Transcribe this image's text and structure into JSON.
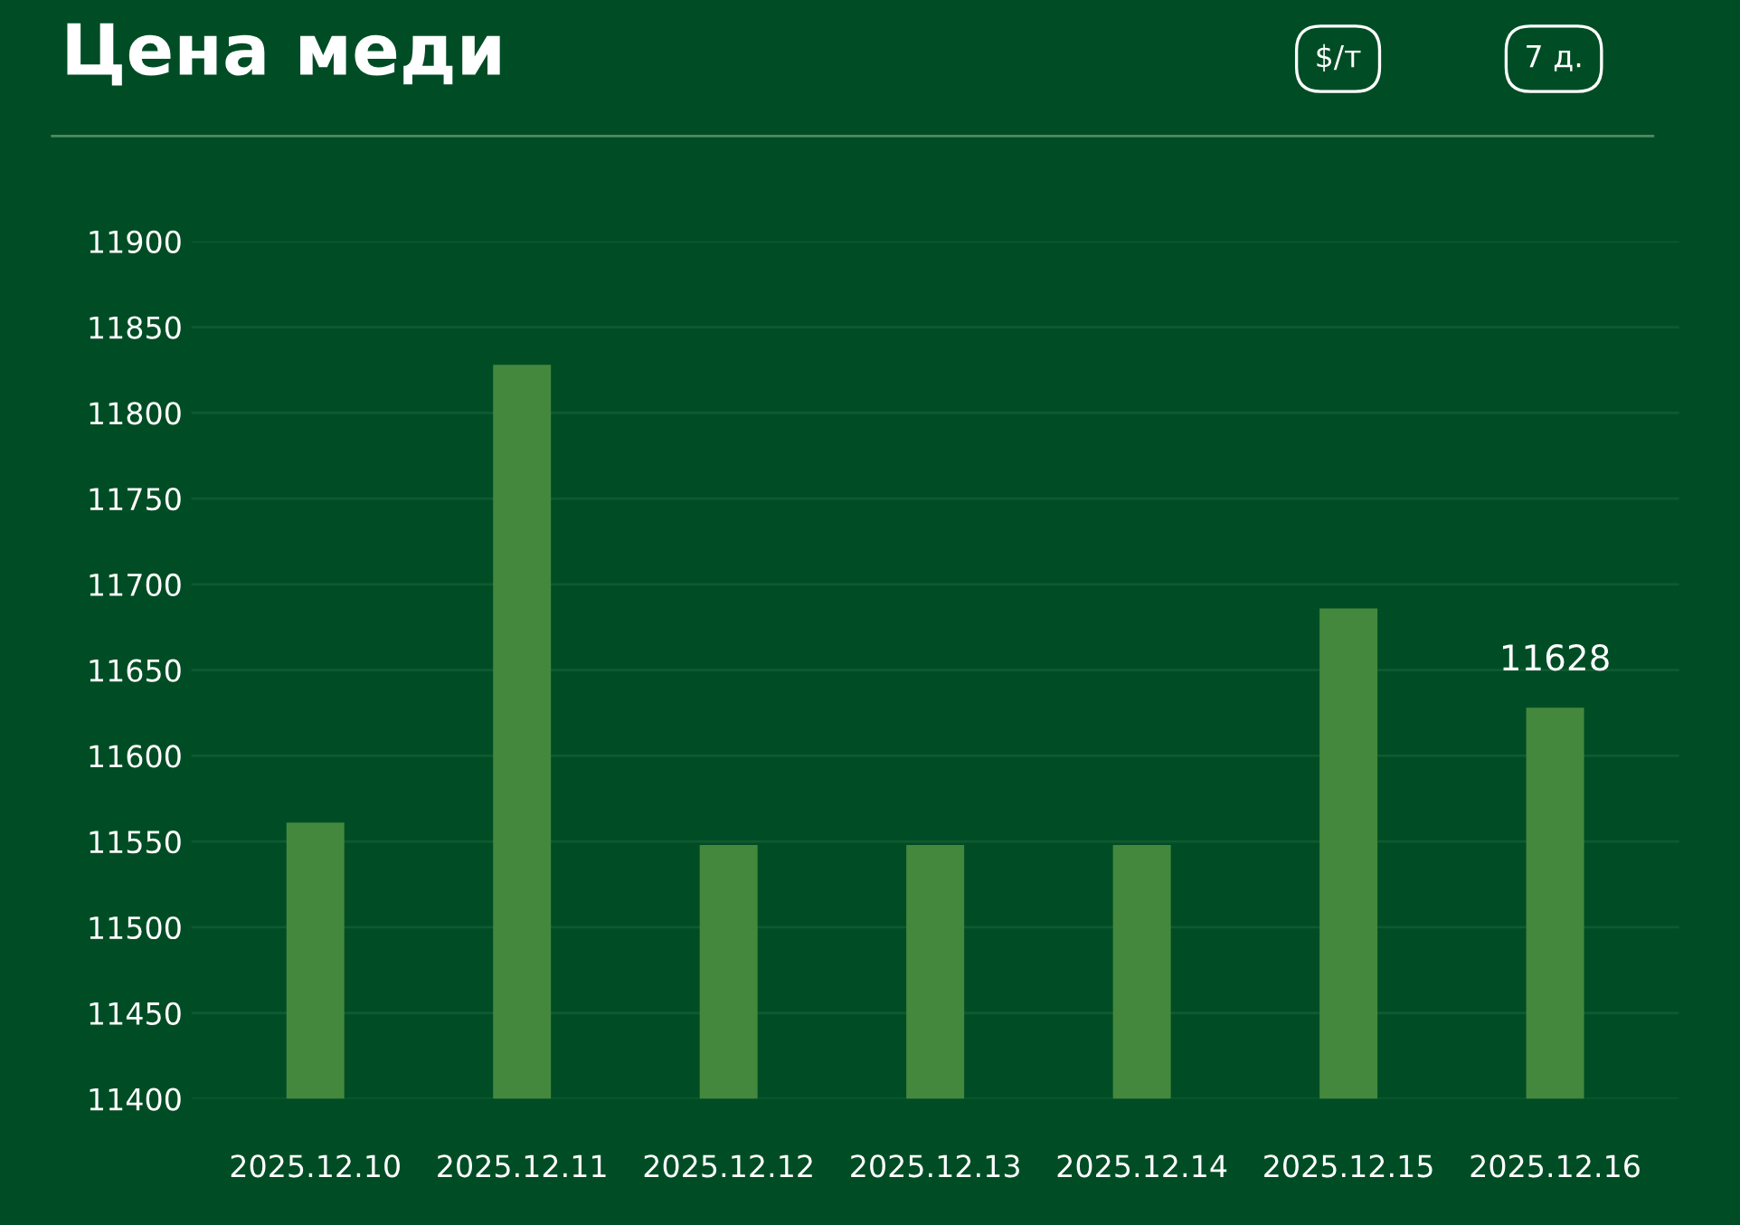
{
  "chart_data": {
    "type": "bar",
    "title": "Цена меди",
    "annotations": [
      "$/т",
      "7 д."
    ],
    "categories": [
      "2025.12.10",
      "2025.12.11",
      "2025.12.12",
      "2025.12.13",
      "2025.12.14",
      "2025.12.15",
      "2025.12.16"
    ],
    "values": [
      11561,
      11828,
      11548,
      11548,
      11548,
      11686,
      11628
    ],
    "value_labels": [
      null,
      null,
      null,
      null,
      null,
      null,
      "11628"
    ],
    "color": "#44883e",
    "ylim": [
      11400,
      11900
    ],
    "yticks": [
      11400,
      11450,
      11500,
      11550,
      11600,
      11650,
      11700,
      11750,
      11800,
      11850,
      11900
    ],
    "grid": "y"
  }
}
